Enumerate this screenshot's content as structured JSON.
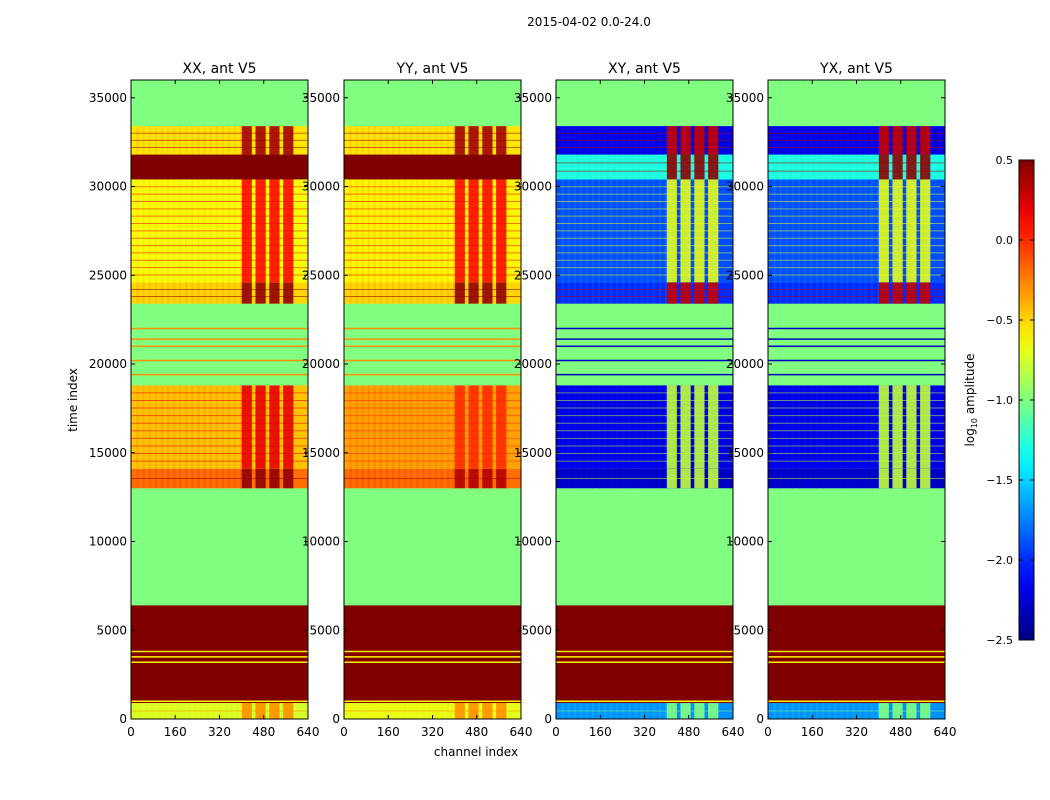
{
  "figure": {
    "suptitle": "2015-04-02 0.0-24.0",
    "xlabel": "channel index",
    "ylabel": "time index"
  },
  "colorbar": {
    "label_main": "log",
    "label_sub": "10",
    "label_tail": " amplitude",
    "min": -2.5,
    "max": 0.5,
    "ticks": [
      -2.5,
      -2.0,
      -1.5,
      -1.0,
      -0.5,
      0.0,
      0.5
    ],
    "tick_labels": [
      "−2.5",
      "−2.0",
      "−1.5",
      "−1.0",
      "−0.5",
      "0.0",
      "0.5"
    ]
  },
  "chart_data": {
    "type": "heatmap",
    "colormap": "jet",
    "xlim": [
      0,
      640
    ],
    "ylim": [
      0,
      36000
    ],
    "xticks": [
      0,
      160,
      320,
      480,
      640
    ],
    "yticks": [
      0,
      5000,
      10000,
      15000,
      20000,
      25000,
      30000,
      35000
    ],
    "panels": [
      {
        "title": "XX, ant V5",
        "background_value": -1.0,
        "segments": [
          {
            "from": 0,
            "to": 900,
            "value": -0.75,
            "stripe_value": -0.3
          },
          {
            "from": 900,
            "to": 6400,
            "value": 0.5,
            "line_value": -0.6,
            "lines": [
              1000,
              3200,
              3500,
              3800
            ]
          },
          {
            "from": 13000,
            "to": 14100,
            "value": -0.2,
            "stripe_value": 0.45
          },
          {
            "from": 14100,
            "to": 18800,
            "value": -0.45,
            "stripe_value": 0.2
          },
          {
            "from": 18800,
            "to": 23200,
            "value": -1.0,
            "line_value": -0.3,
            "lines": [
              19400,
              20200,
              21000,
              21400,
              22000
            ]
          },
          {
            "from": 23400,
            "to": 24600,
            "value": -0.5,
            "stripe_value": 0.45
          },
          {
            "from": 24600,
            "to": 30400,
            "value": -0.65,
            "stripe_value": 0.1
          },
          {
            "from": 30400,
            "to": 31800,
            "value": 0.5,
            "stripe_value": 0.5
          },
          {
            "from": 31800,
            "to": 33400,
            "value": -0.55,
            "stripe_value": 0.4
          }
        ]
      },
      {
        "title": "YY, ant V5",
        "background_value": -1.0,
        "segments": [
          {
            "from": 0,
            "to": 900,
            "value": -0.7,
            "stripe_value": -0.3
          },
          {
            "from": 900,
            "to": 6400,
            "value": 0.5,
            "line_value": -0.6,
            "lines": [
              1000,
              3200,
              3500,
              3800
            ]
          },
          {
            "from": 13000,
            "to": 14100,
            "value": -0.2,
            "stripe_value": 0.35
          },
          {
            "from": 14100,
            "to": 18800,
            "value": -0.35,
            "stripe_value": 0.0
          },
          {
            "from": 18800,
            "to": 23200,
            "value": -1.0,
            "line_value": -0.3,
            "lines": [
              19400,
              20200,
              21000,
              21400,
              22000
            ]
          },
          {
            "from": 23400,
            "to": 24600,
            "value": -0.5,
            "stripe_value": 0.45
          },
          {
            "from": 24600,
            "to": 30400,
            "value": -0.6,
            "stripe_value": 0.1
          },
          {
            "from": 30400,
            "to": 31800,
            "value": 0.5,
            "stripe_value": 0.5
          },
          {
            "from": 31800,
            "to": 33400,
            "value": -0.55,
            "stripe_value": 0.4
          }
        ]
      },
      {
        "title": "XY, ant V5",
        "background_value": -1.0,
        "segments": [
          {
            "from": 0,
            "to": 900,
            "value": -1.7,
            "stripe_value": -1.0
          },
          {
            "from": 900,
            "to": 6400,
            "value": 0.5,
            "line_value": -0.6,
            "lines": [
              1000,
              3200,
              3500,
              3800
            ]
          },
          {
            "from": 13000,
            "to": 14100,
            "value": -2.3,
            "stripe_value": -0.8
          },
          {
            "from": 14100,
            "to": 18800,
            "value": -2.2,
            "stripe_value": -0.8
          },
          {
            "from": 18800,
            "to": 23200,
            "value": -1.0,
            "line_value": -2.3,
            "lines": [
              19400,
              20200,
              21000,
              21400,
              22000
            ]
          },
          {
            "from": 23400,
            "to": 24600,
            "value": -2.0,
            "stripe_value": 0.3
          },
          {
            "from": 24600,
            "to": 30400,
            "value": -1.9,
            "stripe_value": -0.7
          },
          {
            "from": 30400,
            "to": 31800,
            "value": -1.3,
            "stripe_value": 0.45
          },
          {
            "from": 31800,
            "to": 33400,
            "value": -2.2,
            "stripe_value": 0.3
          }
        ]
      },
      {
        "title": "YX, ant V5",
        "background_value": -1.0,
        "segments": [
          {
            "from": 0,
            "to": 900,
            "value": -1.7,
            "stripe_value": -1.0
          },
          {
            "from": 900,
            "to": 6400,
            "value": 0.5,
            "line_value": -0.6,
            "lines": [
              1000,
              3200,
              3500,
              3800
            ]
          },
          {
            "from": 13000,
            "to": 14100,
            "value": -2.3,
            "stripe_value": -0.8
          },
          {
            "from": 14100,
            "to": 18800,
            "value": -2.2,
            "stripe_value": -0.8
          },
          {
            "from": 18800,
            "to": 23200,
            "value": -1.0,
            "line_value": -2.3,
            "lines": [
              19400,
              20200,
              21000,
              21400,
              22000
            ]
          },
          {
            "from": 23400,
            "to": 24600,
            "value": -2.0,
            "stripe_value": 0.3
          },
          {
            "from": 24600,
            "to": 30400,
            "value": -1.9,
            "stripe_value": -0.7
          },
          {
            "from": 30400,
            "to": 31800,
            "value": -1.3,
            "stripe_value": 0.45
          },
          {
            "from": 31800,
            "to": 33400,
            "value": -2.2,
            "stripe_value": 0.3
          }
        ]
      }
    ],
    "bright_channel_band": [
      400,
      600
    ]
  }
}
